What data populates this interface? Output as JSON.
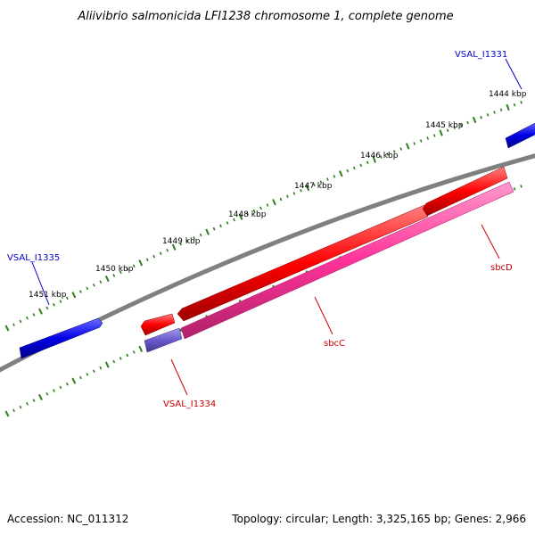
{
  "title": "Aliivibrio salmonicida LFI1238 chromosome 1, complete genome",
  "footer": {
    "accession": "Accession: NC_011312",
    "summary": "Topology: circular; Length: 3,325,165 bp; Genes: 2,966"
  },
  "colors": {
    "backbone": "#808080",
    "tick": "#2e7d1e",
    "blue_gene": "#0000e6",
    "red_gene": "#ff0000",
    "pink_gene": "#ff3399",
    "purple_gene": "#6a5acd",
    "blue_label": "#0000cc",
    "red_label": "#cc0000"
  },
  "ticks": [
    {
      "label": "1444 kbp"
    },
    {
      "label": "1445 kbp"
    },
    {
      "label": "1446 kbp"
    },
    {
      "label": "1447 kbp"
    },
    {
      "label": "1448 kbp"
    },
    {
      "label": "1449 kbp"
    },
    {
      "label": "1450 kbp"
    },
    {
      "label": "1451 kbp"
    }
  ],
  "genes": [
    {
      "label": "VSAL_I1331",
      "color": "blue"
    },
    {
      "label": "VSAL_I1335",
      "color": "blue"
    },
    {
      "label": "sbcD",
      "color": "red"
    },
    {
      "label": "sbcC",
      "color": "red"
    },
    {
      "label": "VSAL_I1334",
      "color": "red"
    }
  ]
}
